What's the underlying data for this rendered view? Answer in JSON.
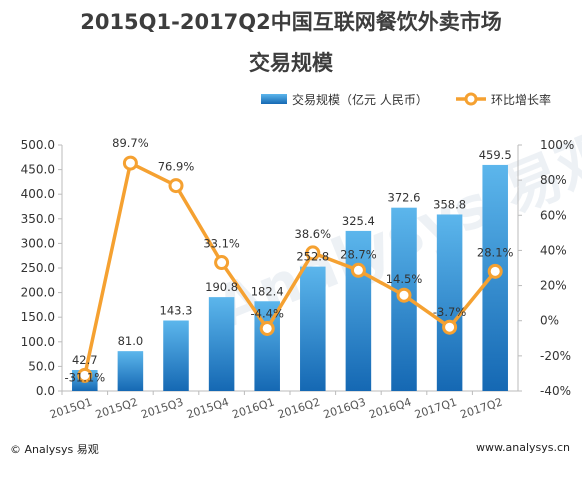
{
  "title_line1": "2015Q1-2017Q2中国互联网餐饮外卖市场",
  "title_line2": "交易规模",
  "footer": {
    "source_left": "© Analysys 易观",
    "source_right": "www.analysys.cn"
  },
  "watermark": "Analysys 易观",
  "colors": {
    "bar_top": "#5cb6ec",
    "bar_bottom": "#1568b3",
    "line": "#f5a131",
    "marker_fill": "#ffffff"
  },
  "chart_data": {
    "type": "bar",
    "categories": [
      "2015Q1",
      "2015Q2",
      "2015Q3",
      "2015Q4",
      "2016Q1",
      "2016Q2",
      "2016Q3",
      "2016Q4",
      "2017Q1",
      "2017Q2"
    ],
    "series": [
      {
        "name": "交易规模（亿元 人民币）",
        "type": "bar",
        "axis": "left",
        "values": [
          42.7,
          81.0,
          143.3,
          190.8,
          182.4,
          252.8,
          325.4,
          372.6,
          358.8,
          459.5
        ],
        "labels": [
          "42.7",
          "81.0",
          "143.3",
          "190.8",
          "182.4",
          "252.8",
          "325.4",
          "372.6",
          "358.8",
          "459.5"
        ]
      },
      {
        "name": "环比增长率",
        "type": "line",
        "axis": "right",
        "values": [
          -31.1,
          89.7,
          76.9,
          33.1,
          -4.4,
          38.6,
          28.7,
          14.5,
          -3.7,
          28.1
        ],
        "labels": [
          "-31.1%",
          "89.7%",
          "76.9%",
          "33.1%",
          "-4.4%",
          "38.6%",
          "28.7%",
          "14.5%",
          "-3.7%",
          "28.1%"
        ]
      }
    ],
    "y_left": {
      "min": 0,
      "max": 500,
      "ticks": [
        "0.0",
        "50.0",
        "100.0",
        "150.0",
        "200.0",
        "250.0",
        "300.0",
        "350.0",
        "400.0",
        "450.0",
        "500.0"
      ]
    },
    "y_right": {
      "min": -40,
      "max": 100,
      "ticks": [
        "-40%",
        "-20%",
        "0%",
        "20%",
        "40%",
        "60%",
        "80%",
        "100%"
      ]
    },
    "legend_position": "top-right",
    "grid": false
  }
}
